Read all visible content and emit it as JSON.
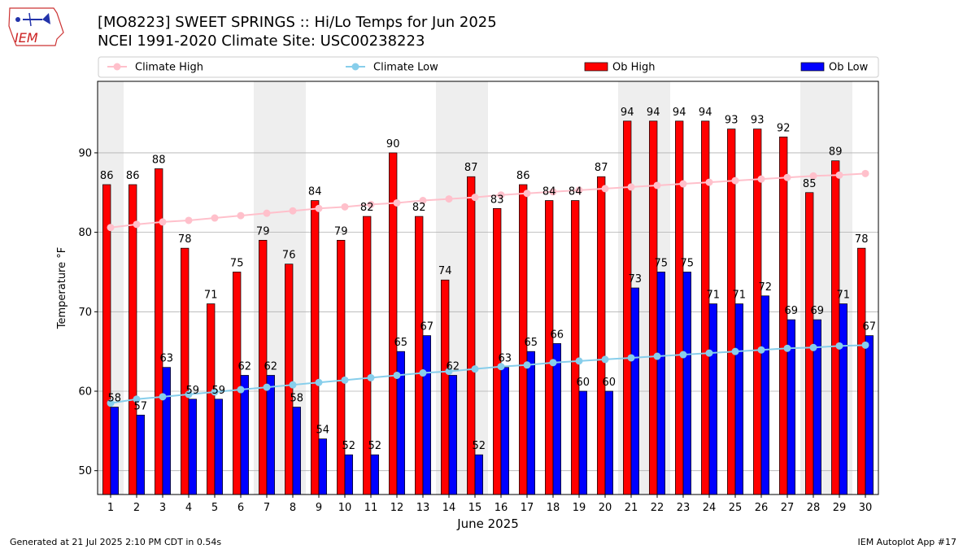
{
  "logo_text": "IEM",
  "title_line1": "[MO8223] SWEET SPRINGS :: Hi/Lo Temps for Jun 2025",
  "title_line2": "NCEI 1991-2020 Climate Site: USC00238223",
  "footer_left": "Generated at 21 Jul 2025 2:10 PM CDT in 0.54s",
  "footer_right": "IEM Autoplot App #17",
  "colors": {
    "climate_high": "#ffc0cb",
    "climate_low": "#87ceeb",
    "ob_high": "#ff0000",
    "ob_low": "#0000ff",
    "weekend_shade": "#eeeeee",
    "grid": "#b0b0b0"
  },
  "chart_data": {
    "type": "bar",
    "xlabel": "June 2025",
    "ylabel": "Temperature °F",
    "ylim": [
      47,
      99
    ],
    "yticks": [
      50,
      60,
      70,
      80,
      90
    ],
    "grid": "horizontal",
    "legend_position": "top",
    "categories": [
      "1",
      "2",
      "3",
      "4",
      "5",
      "6",
      "7",
      "8",
      "9",
      "10",
      "11",
      "12",
      "13",
      "14",
      "15",
      "16",
      "17",
      "18",
      "19",
      "20",
      "21",
      "22",
      "23",
      "24",
      "25",
      "26",
      "27",
      "28",
      "29",
      "30"
    ],
    "weekend_days": [
      1,
      7,
      8,
      14,
      15,
      21,
      22,
      28,
      29
    ],
    "series": [
      {
        "name": "Climate High",
        "kind": "line",
        "values": [
          80.6,
          81.0,
          81.3,
          81.5,
          81.8,
          82.1,
          82.4,
          82.7,
          83.0,
          83.2,
          83.5,
          83.7,
          84.0,
          84.2,
          84.4,
          84.7,
          84.9,
          85.1,
          85.3,
          85.5,
          85.7,
          85.9,
          86.1,
          86.3,
          86.5,
          86.7,
          86.9,
          87.1,
          87.2,
          87.4
        ]
      },
      {
        "name": "Climate Low",
        "kind": "line",
        "values": [
          58.5,
          59.0,
          59.3,
          59.6,
          59.9,
          60.2,
          60.5,
          60.8,
          61.1,
          61.4,
          61.7,
          62.0,
          62.3,
          62.5,
          62.8,
          63.1,
          63.3,
          63.6,
          63.8,
          64.0,
          64.2,
          64.4,
          64.6,
          64.8,
          65.0,
          65.2,
          65.4,
          65.5,
          65.7,
          65.8
        ]
      },
      {
        "name": "Ob High",
        "kind": "bar",
        "values": [
          86,
          86,
          88,
          78,
          71,
          75,
          79,
          76,
          84,
          79,
          82,
          90,
          82,
          74,
          87,
          83,
          86,
          84,
          84,
          87,
          94,
          94,
          94,
          94,
          93,
          93,
          92,
          85,
          89,
          78
        ]
      },
      {
        "name": "Ob Low",
        "kind": "bar",
        "values": [
          58,
          57,
          63,
          59,
          59,
          62,
          62,
          58,
          54,
          52,
          52,
          65,
          67,
          62,
          52,
          63,
          65,
          66,
          60,
          60,
          73,
          75,
          75,
          71,
          71,
          72,
          69,
          69,
          71,
          67
        ]
      }
    ]
  }
}
